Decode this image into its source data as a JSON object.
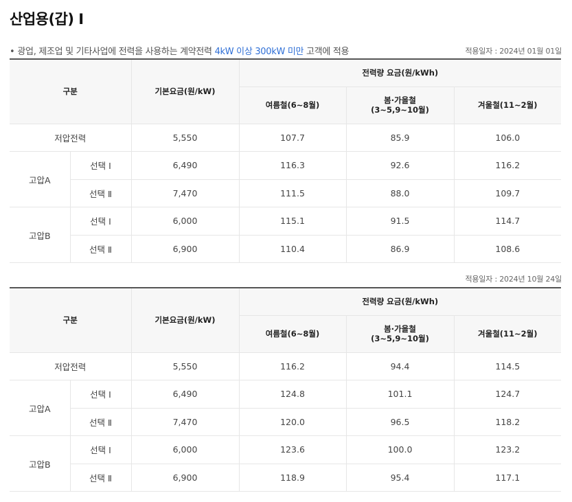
{
  "page": {
    "title": "산업용(갑) Ⅰ",
    "description_bullet": "•",
    "description_prefix": "광업, 제조업 및 기타사업에 전력을 사용하는 계약전력",
    "description_highlight": "4kW 이상 300kW 미만",
    "description_suffix": "고객에 적용"
  },
  "tables": [
    {
      "effective_date": "적용일자 : 2024년 01월 01일",
      "headers": {
        "division": "구분",
        "base_rate": "기본요금(원/kW)",
        "energy_rate": "전력량 요금(원/kWh)",
        "summer": "여름철(6~8월)",
        "spring_fall_line1": "봄·가을철",
        "spring_fall_line2": "(3~5,9~10월)",
        "winter": "겨울철(11~2월)"
      },
      "rows": [
        {
          "group": "저압전력",
          "option": "",
          "base": "5,550",
          "summer": "107.7",
          "spring_fall": "85.9",
          "winter": "106.0"
        },
        {
          "group": "고압A",
          "option": "선택 Ⅰ",
          "base": "6,490",
          "summer": "116.3",
          "spring_fall": "92.6",
          "winter": "116.2"
        },
        {
          "group": "",
          "option": "선택 Ⅱ",
          "base": "7,470",
          "summer": "111.5",
          "spring_fall": "88.0",
          "winter": "109.7"
        },
        {
          "group": "고압B",
          "option": "선택 Ⅰ",
          "base": "6,000",
          "summer": "115.1",
          "spring_fall": "91.5",
          "winter": "114.7"
        },
        {
          "group": "",
          "option": "선택 Ⅱ",
          "base": "6,900",
          "summer": "110.4",
          "spring_fall": "86.9",
          "winter": "108.6"
        }
      ]
    },
    {
      "effective_date": "적용일자 : 2024년 10월 24일",
      "headers": {
        "division": "구분",
        "base_rate": "기본요금(원/kW)",
        "energy_rate": "전력량 요금(원/kWh)",
        "summer": "여름철(6~8월)",
        "spring_fall_line1": "봄·가을철",
        "spring_fall_line2": "(3~5,9~10월)",
        "winter": "겨울철(11~2월)"
      },
      "rows": [
        {
          "group": "저압전력",
          "option": "",
          "base": "5,550",
          "summer": "116.2",
          "spring_fall": "94.4",
          "winter": "114.5"
        },
        {
          "group": "고압A",
          "option": "선택 Ⅰ",
          "base": "6,490",
          "summer": "124.8",
          "spring_fall": "101.1",
          "winter": "124.7"
        },
        {
          "group": "",
          "option": "선택 Ⅱ",
          "base": "7,470",
          "summer": "120.0",
          "spring_fall": "96.5",
          "winter": "118.2"
        },
        {
          "group": "고압B",
          "option": "선택 Ⅰ",
          "base": "6,000",
          "summer": "123.6",
          "spring_fall": "100.0",
          "winter": "123.2"
        },
        {
          "group": "",
          "option": "선택 Ⅱ",
          "base": "6,900",
          "summer": "118.9",
          "spring_fall": "95.4",
          "winter": "117.1"
        }
      ]
    }
  ]
}
